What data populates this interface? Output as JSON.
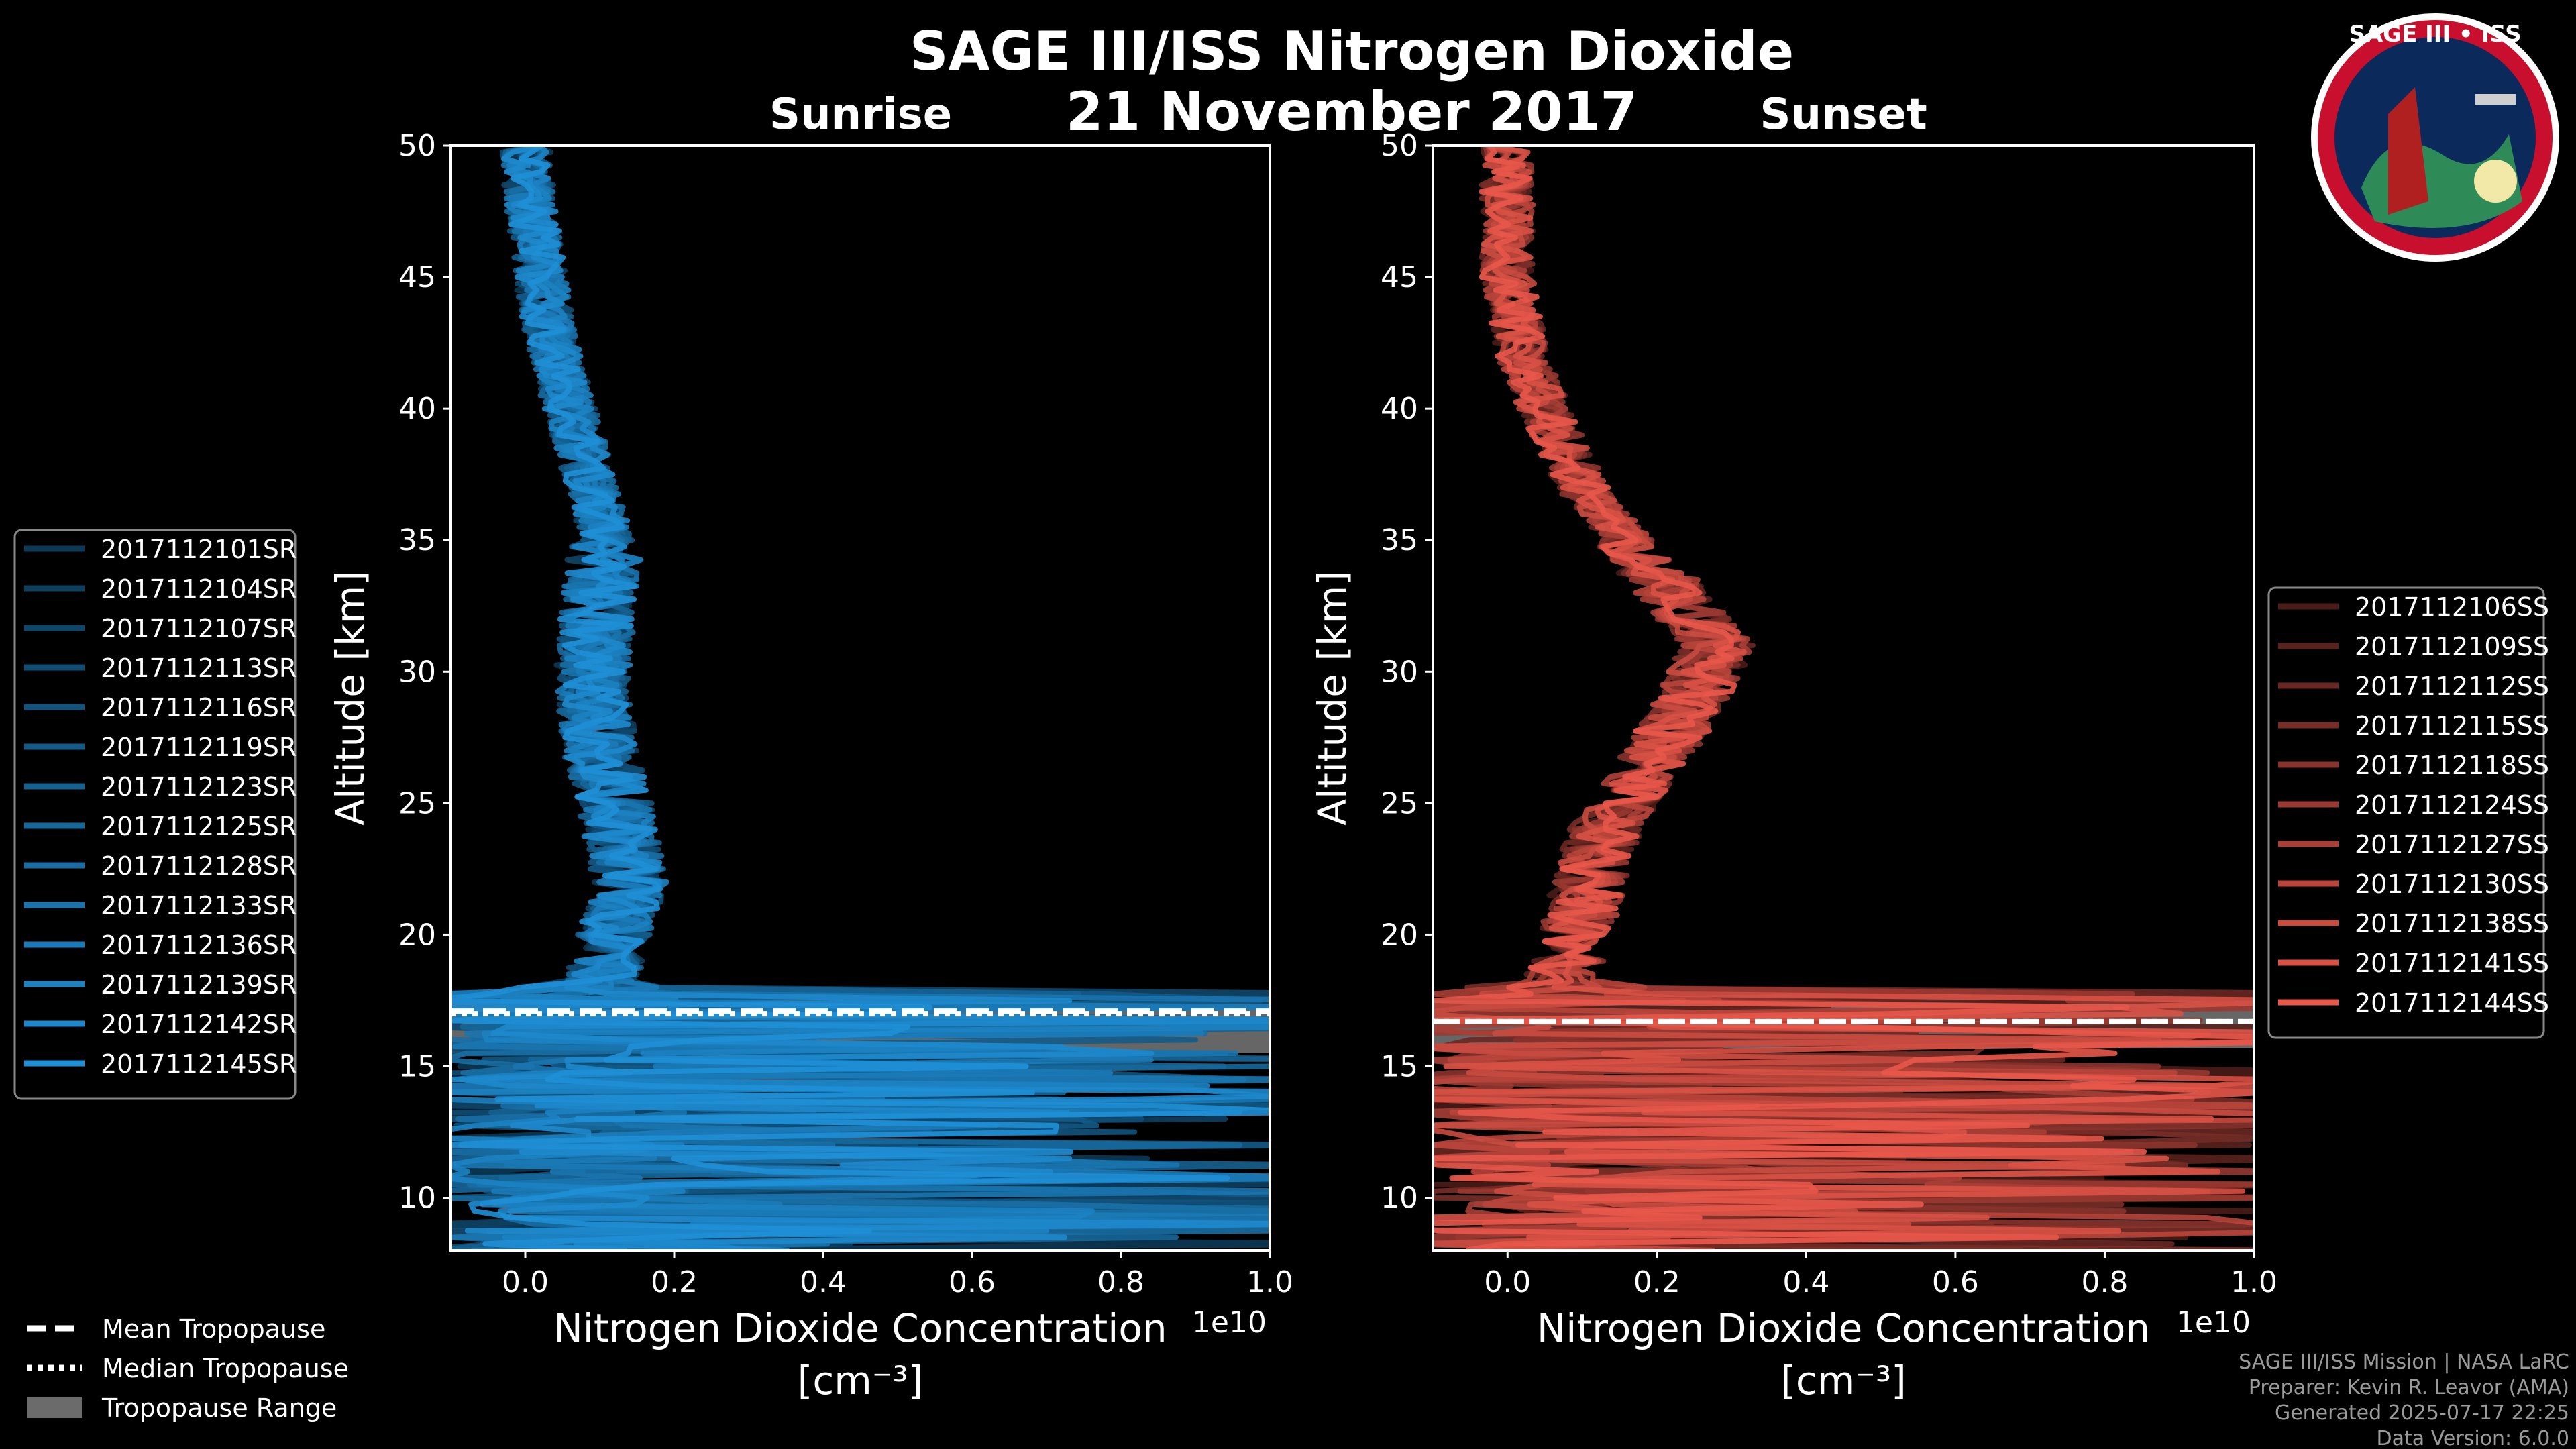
{
  "title": "SAGE III/ISS Nitrogen Dioxide",
  "date": "21 November 2017",
  "logo": {
    "text": "SAGE III • ISS",
    "name": "mission-patch"
  },
  "credits": [
    "SAGE III/ISS Mission | NASA LaRC",
    "Preparer: Kevin R. Leavor (AMA)",
    "Generated 2025-07-17 22:25",
    "Data Version: 6.0.0"
  ],
  "shared_legend": [
    {
      "label": "Mean Tropopause",
      "style": "dashed"
    },
    {
      "label": "Median Tropopause",
      "style": "dotted"
    },
    {
      "label": "Tropopause Range",
      "style": "patch"
    }
  ],
  "colors": {
    "sunrise": "#1f8fd6",
    "sunset": "#e8574a",
    "range": "#6b6b6b"
  },
  "chart_data": [
    {
      "type": "line",
      "panel_title": "Sunrise",
      "xlabel": "Nitrogen Dioxide Concentration",
      "xlabel_unit": "[cm⁻³]",
      "x_offset_label": "1e10",
      "ylabel": "Altitude [km]",
      "xlim": [
        -0.1,
        1.0
      ],
      "ylim": [
        8,
        50
      ],
      "xticks": [
        "0.0",
        "0.2",
        "0.4",
        "0.6",
        "0.8",
        "1.0"
      ],
      "xtick_values": [
        0,
        0.2,
        0.4,
        0.6,
        0.8,
        1.0
      ],
      "yticks": [
        10,
        15,
        20,
        25,
        30,
        35,
        40,
        45,
        50
      ],
      "tropopause": {
        "mean": 17.1,
        "median": 17.0,
        "range": [
          15.5,
          17.5
        ]
      },
      "legend_position": "left",
      "series": [
        {
          "name": "2017112101SR"
        },
        {
          "name": "2017112104SR"
        },
        {
          "name": "2017112107SR"
        },
        {
          "name": "2017112113SR"
        },
        {
          "name": "2017112116SR"
        },
        {
          "name": "2017112119SR"
        },
        {
          "name": "2017112123SR"
        },
        {
          "name": "2017112125SR"
        },
        {
          "name": "2017112128SR"
        },
        {
          "name": "2017112133SR"
        },
        {
          "name": "2017112136SR"
        },
        {
          "name": "2017112139SR"
        },
        {
          "name": "2017112142SR"
        },
        {
          "name": "2017112145SR"
        }
      ],
      "profile_x_1e10": [
        0.0,
        0.01,
        0.02,
        0.04,
        0.06,
        0.09,
        0.11,
        0.1,
        0.09,
        0.1,
        0.12,
        0.14,
        0.12,
        0.1,
        0.2,
        0.6,
        1.0,
        0.9,
        1.0
      ],
      "profile_y_km": [
        50,
        47,
        45,
        42,
        40,
        37,
        35,
        33,
        30,
        27,
        25,
        22,
        20,
        18,
        16,
        13,
        11,
        10,
        9
      ]
    },
    {
      "type": "line",
      "panel_title": "Sunset",
      "xlabel": "Nitrogen Dioxide Concentration",
      "xlabel_unit": "[cm⁻³]",
      "x_offset_label": "1e10",
      "ylabel": "Altitude [km]",
      "xlim": [
        -0.1,
        1.0
      ],
      "ylim": [
        8,
        50
      ],
      "xticks": [
        "0.0",
        "0.2",
        "0.4",
        "0.6",
        "0.8",
        "1.0"
      ],
      "xtick_values": [
        0,
        0.2,
        0.4,
        0.6,
        0.8,
        1.0
      ],
      "yticks": [
        10,
        15,
        20,
        25,
        30,
        35,
        40,
        45,
        50
      ],
      "tropopause": {
        "mean": 16.7,
        "median": 16.7,
        "range": [
          15.7,
          17.5
        ]
      },
      "legend_position": "right",
      "series": [
        {
          "name": "2017112106SS"
        },
        {
          "name": "2017112109SS"
        },
        {
          "name": "2017112112SS"
        },
        {
          "name": "2017112115SS"
        },
        {
          "name": "2017112118SS"
        },
        {
          "name": "2017112124SS"
        },
        {
          "name": "2017112127SS"
        },
        {
          "name": "2017112130SS"
        },
        {
          "name": "2017112138SS"
        },
        {
          "name": "2017112141SS"
        },
        {
          "name": "2017112144SS"
        }
      ],
      "profile_x_1e10": [
        0.0,
        0.0,
        0.0,
        0.02,
        0.05,
        0.1,
        0.16,
        0.22,
        0.28,
        0.25,
        0.18,
        0.13,
        0.1,
        0.08,
        0.05,
        0.3,
        0.8,
        1.0,
        1.0
      ],
      "profile_y_km": [
        50,
        47,
        45,
        42,
        40,
        37,
        35,
        33,
        31,
        29,
        26,
        24,
        21,
        19,
        17,
        15,
        13,
        11,
        9
      ]
    }
  ]
}
